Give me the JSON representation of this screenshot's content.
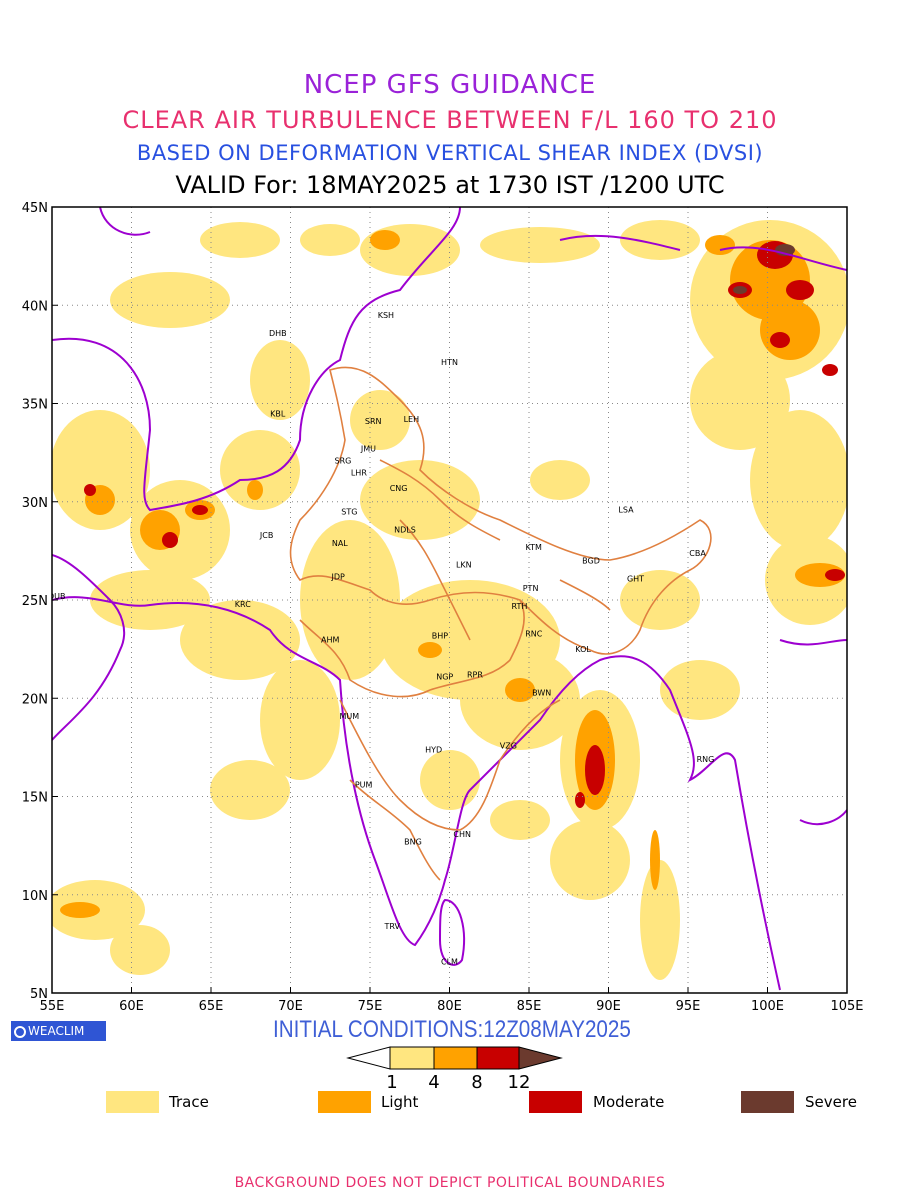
{
  "header": {
    "title": "NCEP GFS GUIDANCE",
    "subtitle": "CLEAR AIR TURBULENCE BETWEEN F/L 160 TO 210",
    "method": "BASED ON DEFORMATION VERTICAL SHEAR INDEX (DVSI)",
    "valid": "VALID For: 18MAY2025 at 1730 IST /1200 UTC"
  },
  "map": {
    "lon_ticks": [
      "55E",
      "60E",
      "65E",
      "70E",
      "75E",
      "80E",
      "85E",
      "90E",
      "95E",
      "100E",
      "105E"
    ],
    "lat_ticks": [
      "45N",
      "40N",
      "35N",
      "30N",
      "25N",
      "20N",
      "15N",
      "10N",
      "5N"
    ],
    "lon_range": [
      55,
      105
    ],
    "lat_range": [
      5,
      45
    ],
    "grid": "dotted",
    "stations": [
      {
        "code": "DHB",
        "lon": 69.2,
        "lat": 38.6
      },
      {
        "code": "KSH",
        "lon": 76.0,
        "lat": 39.5
      },
      {
        "code": "HTN",
        "lon": 80.0,
        "lat": 37.1
      },
      {
        "code": "KBL",
        "lon": 69.2,
        "lat": 34.5
      },
      {
        "code": "SRN",
        "lon": 75.2,
        "lat": 34.1
      },
      {
        "code": "LEH",
        "lon": 77.6,
        "lat": 34.2
      },
      {
        "code": "JMU",
        "lon": 74.9,
        "lat": 32.7
      },
      {
        "code": "SRG",
        "lon": 73.3,
        "lat": 32.1
      },
      {
        "code": "LHR",
        "lon": 74.3,
        "lat": 31.5
      },
      {
        "code": "CNG",
        "lon": 76.8,
        "lat": 30.7
      },
      {
        "code": "STG",
        "lon": 73.7,
        "lat": 29.5
      },
      {
        "code": "NDLS",
        "lon": 77.2,
        "lat": 28.6
      },
      {
        "code": "LSA",
        "lon": 91.1,
        "lat": 29.6
      },
      {
        "code": "JCB",
        "lon": 68.5,
        "lat": 28.3
      },
      {
        "code": "NAL",
        "lon": 73.1,
        "lat": 27.9
      },
      {
        "code": "KTM",
        "lon": 85.3,
        "lat": 27.7
      },
      {
        "code": "CBA",
        "lon": 95.6,
        "lat": 27.4
      },
      {
        "code": "BGD",
        "lon": 88.9,
        "lat": 27.0
      },
      {
        "code": "GHT",
        "lon": 91.7,
        "lat": 26.1
      },
      {
        "code": "LKN",
        "lon": 80.9,
        "lat": 26.8
      },
      {
        "code": "JDP",
        "lon": 73.0,
        "lat": 26.2
      },
      {
        "code": "DUB",
        "lon": 55.3,
        "lat": 25.2
      },
      {
        "code": "PTN",
        "lon": 85.1,
        "lat": 25.6
      },
      {
        "code": "KRC",
        "lon": 67.0,
        "lat": 24.8
      },
      {
        "code": "RTH",
        "lon": 84.4,
        "lat": 24.7
      },
      {
        "code": "AHM",
        "lon": 72.5,
        "lat": 23.0
      },
      {
        "code": "BHP",
        "lon": 79.4,
        "lat": 23.2
      },
      {
        "code": "RNC",
        "lon": 85.3,
        "lat": 23.3
      },
      {
        "code": "KOL",
        "lon": 88.4,
        "lat": 22.5
      },
      {
        "code": "NGP",
        "lon": 79.7,
        "lat": 21.1
      },
      {
        "code": "RPR",
        "lon": 81.6,
        "lat": 21.2
      },
      {
        "code": "BWN",
        "lon": 85.8,
        "lat": 20.3
      },
      {
        "code": "MUM",
        "lon": 73.7,
        "lat": 19.1
      },
      {
        "code": "HYD",
        "lon": 79.0,
        "lat": 17.4
      },
      {
        "code": "VZG",
        "lon": 83.7,
        "lat": 17.6
      },
      {
        "code": "RNG",
        "lon": 96.1,
        "lat": 16.9
      },
      {
        "code": "PUM",
        "lon": 74.6,
        "lat": 15.6
      },
      {
        "code": "CHN",
        "lon": 80.8,
        "lat": 13.1
      },
      {
        "code": "BNG",
        "lon": 77.7,
        "lat": 12.7
      },
      {
        "code": "TRV",
        "lon": 76.4,
        "lat": 8.4
      },
      {
        "code": "CLM",
        "lon": 80.0,
        "lat": 6.6
      }
    ]
  },
  "badge": {
    "icon": "weaclim-logo-icon",
    "label": "WEACLIM"
  },
  "init_conditions": "INITIAL CONDITIONS:12Z08MAY2025",
  "colorbar": {
    "ticks": [
      "1",
      "4",
      "8",
      "12"
    ],
    "colors": [
      "#ffe680",
      "#ffa200",
      "#c80000",
      "#6b3a2e"
    ]
  },
  "legend": [
    {
      "label": "Trace",
      "color": "#ffe680"
    },
    {
      "label": "Light",
      "color": "#ffa200"
    },
    {
      "label": "Moderate",
      "color": "#c80000"
    },
    {
      "label": "Severe",
      "color": "#6b3a2e"
    }
  ],
  "footer": "BACKGROUND DOES NOT DEPICT POLITICAL BOUNDARIES"
}
